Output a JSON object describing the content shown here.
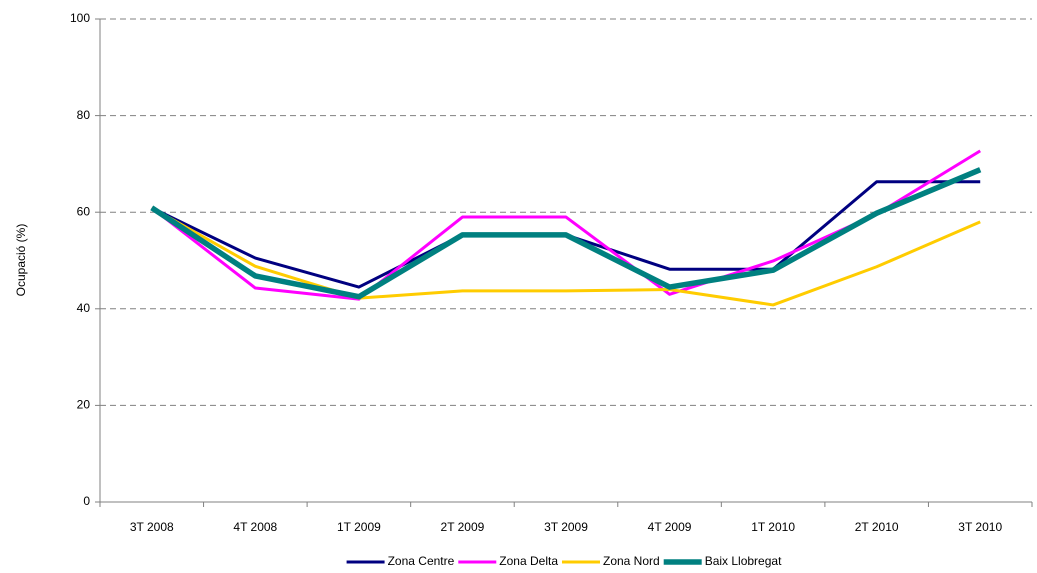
{
  "chart_data": {
    "type": "line",
    "y_label": "Ocupació (%)",
    "categories": [
      "3T 2008",
      "4T 2008",
      "1T 2009",
      "2T 2009",
      "3T 2009",
      "4T 2009",
      "1T 2010",
      "2T 2010",
      "3T 2010"
    ],
    "series": [
      {
        "name": "Zona Centre",
        "color": "#000080",
        "values": [
          60.9,
          50.5,
          44.5,
          55.3,
          55.3,
          48.2,
          48.2,
          66.3,
          66.3
        ]
      },
      {
        "name": "Zona Delta",
        "color": "#ff00ff",
        "values": [
          60.9,
          44.3,
          42.0,
          59.0,
          59.0,
          43.0,
          49.9,
          59.6,
          72.7
        ]
      },
      {
        "name": "Zona Nord",
        "color": "#ffcc00",
        "values": [
          60.9,
          48.8,
          42.2,
          43.7,
          43.7,
          44.0,
          40.8,
          48.7,
          58.0
        ]
      },
      {
        "name": "Baix Llobregat",
        "color": "#008080",
        "values": [
          60.9,
          46.8,
          42.5,
          55.3,
          55.3,
          44.5,
          48.0,
          59.8,
          68.8
        ]
      }
    ],
    "ylim": [
      0,
      100
    ],
    "yticks": [
      0,
      20,
      40,
      60,
      80,
      100
    ],
    "grid": true,
    "legend": "bottom"
  }
}
